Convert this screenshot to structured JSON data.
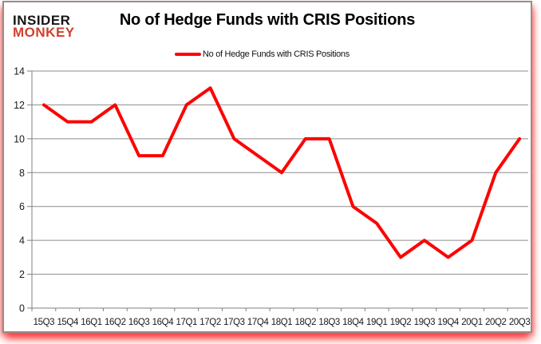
{
  "logo": {
    "line1": "INSIDER",
    "line2": "MONKEY"
  },
  "header": {
    "title": "No of Hedge Funds with CRIS Positions"
  },
  "legend": {
    "label": "No of Hedge Funds with CRIS Positions"
  },
  "colors": {
    "series_line": "#ff0000",
    "logo_black": "#151515",
    "logo_red": "#d0402e",
    "gridline": "#8c8c8c",
    "axis": "#7f7f7f",
    "tick_label": "#1a1a1a",
    "bottom_glow": "#ff0000"
  },
  "chart_data": {
    "type": "line",
    "title": "No of Hedge Funds with CRIS Positions",
    "legend": "No of Hedge Funds with CRIS Positions",
    "legend_position": "top",
    "grid": true,
    "categories": [
      "15Q3",
      "15Q4",
      "16Q1",
      "16Q2",
      "16Q3",
      "16Q4",
      "17Q1",
      "17Q2",
      "17Q3",
      "17Q4",
      "18Q1",
      "18Q2",
      "18Q3",
      "18Q4",
      "19Q1",
      "19Q2",
      "19Q3",
      "19Q4",
      "20Q1",
      "20Q2",
      "20Q3"
    ],
    "values": [
      12,
      11,
      11,
      12,
      9,
      9,
      12,
      13,
      10,
      9,
      8,
      10,
      10,
      6,
      5,
      3,
      4,
      3,
      4,
      8,
      10
    ],
    "xlabel": "",
    "ylabel": "",
    "ylim": [
      0,
      14
    ],
    "ytick_step": 2,
    "line_color": "#ff0000"
  }
}
